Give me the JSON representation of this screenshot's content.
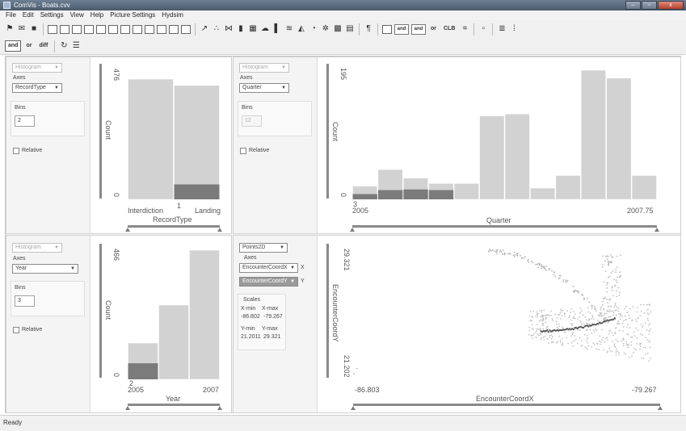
{
  "window": {
    "title": "ComVis - Boats.cvv",
    "minimize": "–",
    "maximize": "▫",
    "close": "x"
  },
  "menu": [
    "File",
    "Edit",
    "Settings",
    "View",
    "Help",
    "Picture Settings",
    "Hydsim"
  ],
  "toolbar2": {
    "and": "and",
    "or": "or",
    "diff": "diff"
  },
  "toolbar1": {
    "and": "and",
    "or": "or",
    "clb": "CLB"
  },
  "status": "Ready",
  "colors": {
    "bar": "#d2d2d2",
    "selected": "#7b7b7b",
    "axis": "#8a8a8a"
  },
  "panels": {
    "p1": {
      "view_type": "Histogram",
      "axes_label": "Axes",
      "axis": "RecordType",
      "bins_label": "Bins",
      "bins": "2",
      "relative_label": "Relative",
      "y_max": "476",
      "y_min": "0",
      "y_title": "Count",
      "x_title": "RecordType",
      "x_ticks": [
        "Interdiction",
        "Landing"
      ],
      "cursor_label": "1"
    },
    "p2": {
      "view_type": "Histogram",
      "axes_label": "Axes",
      "axis": "Quarter",
      "bins_label": "Bins",
      "bins": "12",
      "relative_label": "Relative",
      "y_max": "195",
      "y_min": "0",
      "y_title": "Count",
      "x_title": "Quarter",
      "x_min": "2005",
      "x_max": "2007.75",
      "cursor_label": "3"
    },
    "p3": {
      "view_type": "Histogram",
      "axes_label": "Axes",
      "axis": "Year",
      "bins_label": "Bins",
      "bins": "3",
      "relative_label": "Relative",
      "y_max": "466",
      "y_min": "0",
      "y_title": "Count",
      "x_title": "Year",
      "x_min": "2005",
      "x_max": "2007",
      "cursor_label": "2"
    },
    "p4": {
      "view_type": "Points2D",
      "axes_label": "Axes",
      "x_axis": "EncounterCoordX",
      "x_axis_tag": "X",
      "y_axis": "EncounterCoordY",
      "y_axis_tag": "Y",
      "scales_label": "Scales",
      "xmin_label": "X-min",
      "xmax_label": "X-max",
      "xmin": "-86.802",
      "xmax": "-79.267",
      "ymin_label": "Y-min",
      "ymax_label": "Y-max",
      "ymin": "21.2011",
      "ymax": "29.321",
      "y_max": "29.321",
      "y_min": "21.202",
      "y_title": "EncounterCoordY",
      "x_min": "-86.803",
      "x_max": "-79.267",
      "x_title": "EncounterCoordX"
    }
  },
  "chart_data": [
    {
      "type": "bar",
      "categories": [
        "Interdiction",
        "Landing"
      ],
      "values": [
        443,
        420
      ],
      "selected": [
        0,
        55
      ],
      "ylim": [
        0,
        476
      ],
      "xlabel": "RecordType",
      "ylabel": "Count"
    },
    {
      "type": "bar",
      "categories": [
        "1",
        "2",
        "3",
        "4",
        "5",
        "6",
        "7",
        "8",
        "9",
        "10",
        "11",
        "12"
      ],
      "values": [
        20,
        45,
        32,
        24,
        24,
        126,
        129,
        17,
        36,
        195,
        183,
        36
      ],
      "selected": [
        8,
        14,
        15,
        14,
        0,
        0,
        0,
        0,
        0,
        0,
        0,
        0
      ],
      "ylim": [
        0,
        195
      ],
      "xlim": [
        2005,
        2007.75
      ],
      "xlabel": "Quarter",
      "ylabel": "Count"
    },
    {
      "type": "bar",
      "categories": [
        "2005",
        "2006",
        "2007"
      ],
      "values": [
        131,
        268,
        466
      ],
      "selected": [
        58,
        0,
        0
      ],
      "ylim": [
        0,
        466
      ],
      "xlim": [
        2005,
        2007
      ],
      "xlabel": "Year",
      "ylabel": "Count"
    },
    {
      "type": "scatter",
      "xlim": [
        -86.803,
        -79.267
      ],
      "ylim": [
        21.202,
        29.321
      ],
      "xlabel": "EncounterCoordX",
      "ylabel": "EncounterCoordY"
    }
  ]
}
